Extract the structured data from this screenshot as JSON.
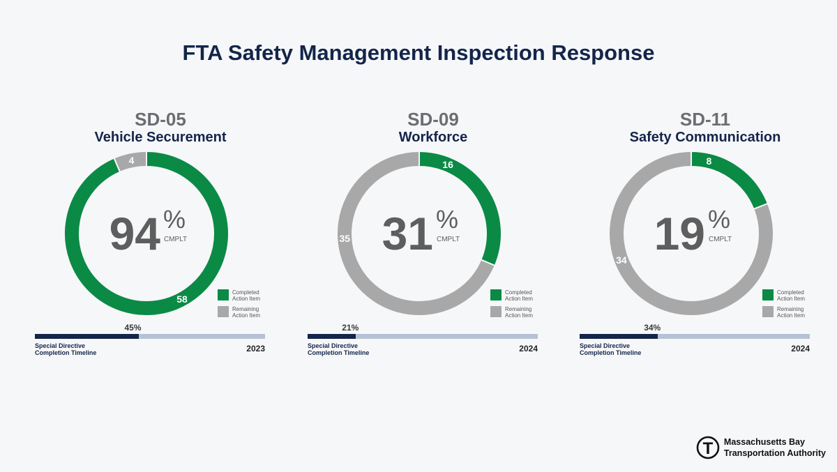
{
  "title": "FTA Safety Management Inspection Response",
  "colors": {
    "completed": "#0b8a45",
    "remaining": "#a8a8a8",
    "navy": "#14254a",
    "track": "#b6c2d3"
  },
  "chart_data": [
    {
      "type": "pie",
      "code": "SD-05",
      "name": "Vehicle Securement",
      "percent": "94",
      "percent_sign": "%",
      "percent_caption": "CMPLT",
      "categories": [
        "Completed Action Item",
        "Remaining Action Item"
      ],
      "values": [
        58,
        4
      ],
      "legend": {
        "completed": "Completed Action Item",
        "remaining": "Remaining Action Item"
      },
      "timeline": {
        "progress": 0.45,
        "pct_label": "45%",
        "label": "Special Directive Completion Timeline",
        "year": "2023"
      }
    },
    {
      "type": "pie",
      "code": "SD-09",
      "name": "Workforce",
      "percent": "31",
      "percent_sign": "%",
      "percent_caption": "CMPLT",
      "categories": [
        "Completed Action Item",
        "Remaining Action Item"
      ],
      "values": [
        16,
        35
      ],
      "legend": {
        "completed": "Completed Action Item",
        "remaining": "Remaining Action Item"
      },
      "timeline": {
        "progress": 0.21,
        "pct_label": "21%",
        "label": "Special Directive Completion Timeline",
        "year": "2024"
      }
    },
    {
      "type": "pie",
      "code": "SD-11",
      "name": "Safety Communication",
      "percent": "19",
      "percent_sign": "%",
      "percent_caption": "CMPLT",
      "categories": [
        "Completed Action Item",
        "Remaining Action Item"
      ],
      "values": [
        8,
        34
      ],
      "legend": {
        "completed": "Completed Action Item",
        "remaining": "Remaining Action Item"
      },
      "timeline": {
        "progress": 0.34,
        "pct_label": "34%",
        "label": "Special Directive Completion Timeline",
        "year": "2024"
      }
    }
  ],
  "logo": {
    "line1": "Massachusetts Bay",
    "line2": "Transportation Authority",
    "mark": "T"
  }
}
